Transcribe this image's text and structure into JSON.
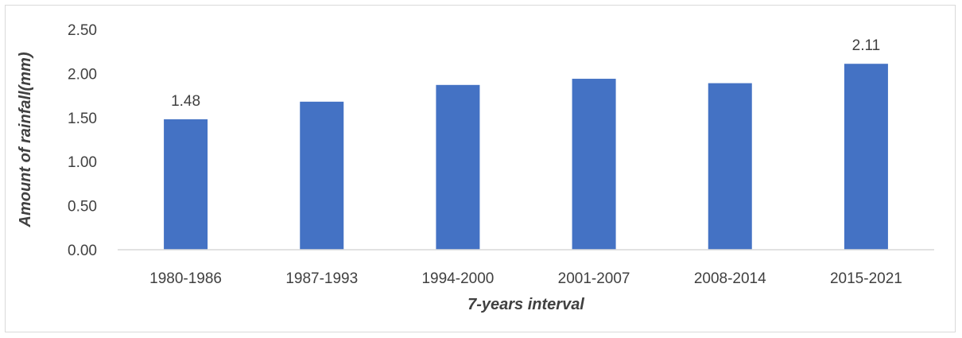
{
  "chart_data": {
    "type": "bar",
    "categories": [
      "1980-1986",
      "1987-1993",
      "1994-2000",
      "2001-2007",
      "2008-2014",
      "2015-2021"
    ],
    "values": [
      1.48,
      1.68,
      1.87,
      1.94,
      1.89,
      2.11
    ],
    "data_labels": [
      "1.48",
      "",
      "",
      "",
      "",
      "2.11"
    ],
    "title": "",
    "xlabel": "7-years interval",
    "ylabel": "Amount of rainfall(mm)",
    "ylim": [
      0,
      2.5
    ],
    "yticks": [
      "0.00",
      "0.50",
      "1.00",
      "1.50",
      "2.00",
      "2.50"
    ],
    "ytick_values": [
      0,
      0.5,
      1.0,
      1.5,
      2.0,
      2.5
    ],
    "grid": false,
    "legend": "none",
    "colors": {
      "bar": "#4472C4",
      "text": "#404040",
      "axis": "#d9d9d9",
      "border": "#d9d9d9"
    }
  }
}
